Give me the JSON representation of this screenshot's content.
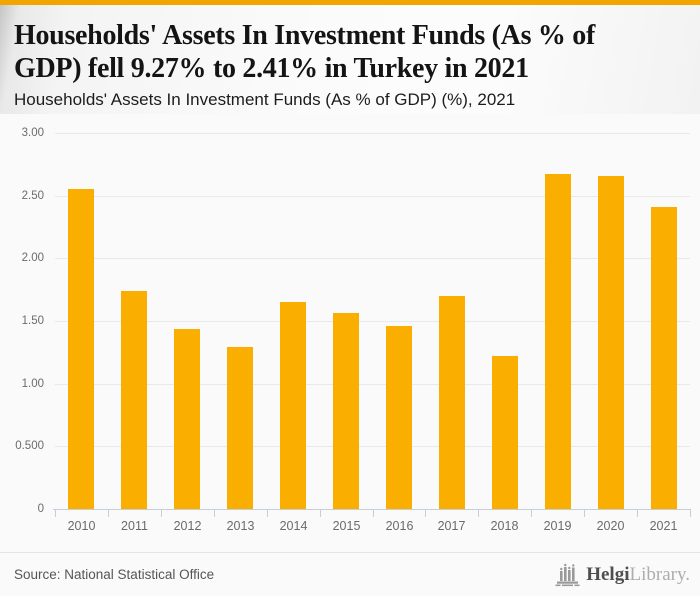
{
  "header": {
    "title": "Households' Assets In Investment Funds (As % of\nGDP) fell 9.27% to 2.41% in Turkey in 2021",
    "subtitle": "Households' Assets In Investment Funds (As % of GDP) (%), 2021"
  },
  "chart_data": {
    "type": "bar",
    "title": "Households' Assets In Investment Funds (As % of GDP) (%), 2021",
    "categories": [
      "2010",
      "2011",
      "2012",
      "2013",
      "2014",
      "2015",
      "2016",
      "2017",
      "2018",
      "2019",
      "2020",
      "2021"
    ],
    "values": [
      2.55,
      1.74,
      1.44,
      1.29,
      1.65,
      1.56,
      1.46,
      1.7,
      1.22,
      2.67,
      2.66,
      2.41
    ],
    "xlabel": "",
    "ylabel": "",
    "ylim": [
      0,
      3
    ],
    "yticks": [
      {
        "value": 0,
        "label": "0"
      },
      {
        "value": 0.5,
        "label": "0.500"
      },
      {
        "value": 1,
        "label": "1.00"
      },
      {
        "value": 1.5,
        "label": "1.50"
      },
      {
        "value": 2,
        "label": "2.00"
      },
      {
        "value": 2.5,
        "label": "2.50"
      },
      {
        "value": 3,
        "label": "3.00"
      }
    ],
    "grid": true,
    "legend": false,
    "bar_color": "#F9AE00"
  },
  "footer": {
    "source": "Source: National Statistical Office",
    "logo_primary": "Helgi",
    "logo_secondary": "Library."
  },
  "colors": {
    "accent_bar": "#F9AE00",
    "top_border": "#F0A500",
    "grid_line": "#E9E9E9",
    "axis_line": "#C5CEDB",
    "axis_text": "#6B6B6B",
    "title_text": "#141414",
    "source_text": "#565656"
  }
}
